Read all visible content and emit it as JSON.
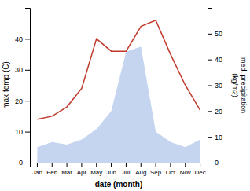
{
  "chart_data": {
    "type": "line",
    "categories": [
      "Jan",
      "Feb",
      "Mar",
      "Apr",
      "May",
      "Jun",
      "Jul",
      "Aug",
      "Sep",
      "Oct",
      "Nov",
      "Dec"
    ],
    "series": [
      {
        "type": "area",
        "axis": "y2",
        "color": "#c5d5ef",
        "values": [
          6,
          8,
          7,
          9,
          13,
          20,
          43,
          45,
          12,
          8,
          6,
          9
        ]
      },
      {
        "type": "line",
        "color": "#c0392b",
        "values": [
          14,
          15,
          18,
          24,
          40,
          36,
          36,
          44,
          46,
          35,
          25,
          17
        ]
      }
    ],
    "xlabel": "date (month)",
    "ylabel": "max temp (C)",
    "y2label": "med. precipitation\n(kg/m2)",
    "ylim": [
      0,
      50
    ],
    "yticks": [
      0,
      10,
      20,
      30,
      40
    ],
    "y2lim": [
      0,
      60
    ],
    "y2ticks": [
      0,
      10,
      20,
      30,
      40,
      50
    ],
    "grid": false
  }
}
